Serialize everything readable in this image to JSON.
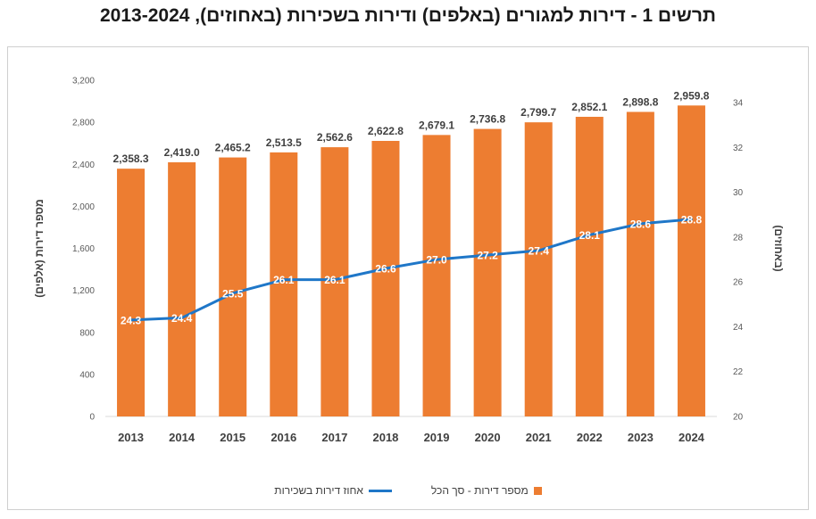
{
  "title": "תרשים 1 - דירות למגורים (באלפים) ודירות בשכירות (באחוזים), 2013-2024",
  "chart_data": {
    "type": "bar",
    "categories": [
      "2013",
      "2014",
      "2015",
      "2016",
      "2017",
      "2018",
      "2019",
      "2020",
      "2021",
      "2022",
      "2023",
      "2024"
    ],
    "series": [
      {
        "name": "מספר דירות - סך הכל",
        "type": "bar",
        "axis": "left",
        "color": "#ed7d31",
        "values": [
          2358.3,
          2419.0,
          2465.2,
          2513.5,
          2562.6,
          2622.8,
          2679.1,
          2736.8,
          2799.7,
          2852.1,
          2898.8,
          2959.8
        ],
        "labels": [
          "2,358.3",
          "2,419.0",
          "2,465.2",
          "2,513.5",
          "2,562.6",
          "2,622.8",
          "2,679.1",
          "2,736.8",
          "2,799.7",
          "2,852.1",
          "2,898.8",
          "2,959.8"
        ]
      },
      {
        "name": "אחוז דירות בשכירות",
        "type": "line",
        "axis": "right",
        "color": "#1f77c8",
        "values": [
          24.3,
          24.4,
          25.5,
          26.1,
          26.1,
          26.6,
          27.0,
          27.2,
          27.4,
          28.1,
          28.6,
          28.8
        ],
        "labels": [
          "24.3",
          "24.4",
          "25.5",
          "26.1",
          "26.1",
          "26.6",
          "27.0",
          "27.2",
          "27.4",
          "28.1",
          "28.6",
          "28.8"
        ]
      }
    ],
    "ylabel_left": "מספר דירות (אלפים)",
    "ylabel_right": "(באחוזים)",
    "ylim_left": [
      0,
      3200
    ],
    "yticks_left": [
      "0",
      "400",
      "800",
      "1,200",
      "1,600",
      "2,000",
      "2,400",
      "2,800",
      "3,200"
    ],
    "ylim_right": [
      20,
      35
    ],
    "yticks_right": [
      "20",
      "22",
      "24",
      "26",
      "28",
      "30",
      "32",
      "34"
    ],
    "grid": false,
    "legend": "bottom"
  }
}
